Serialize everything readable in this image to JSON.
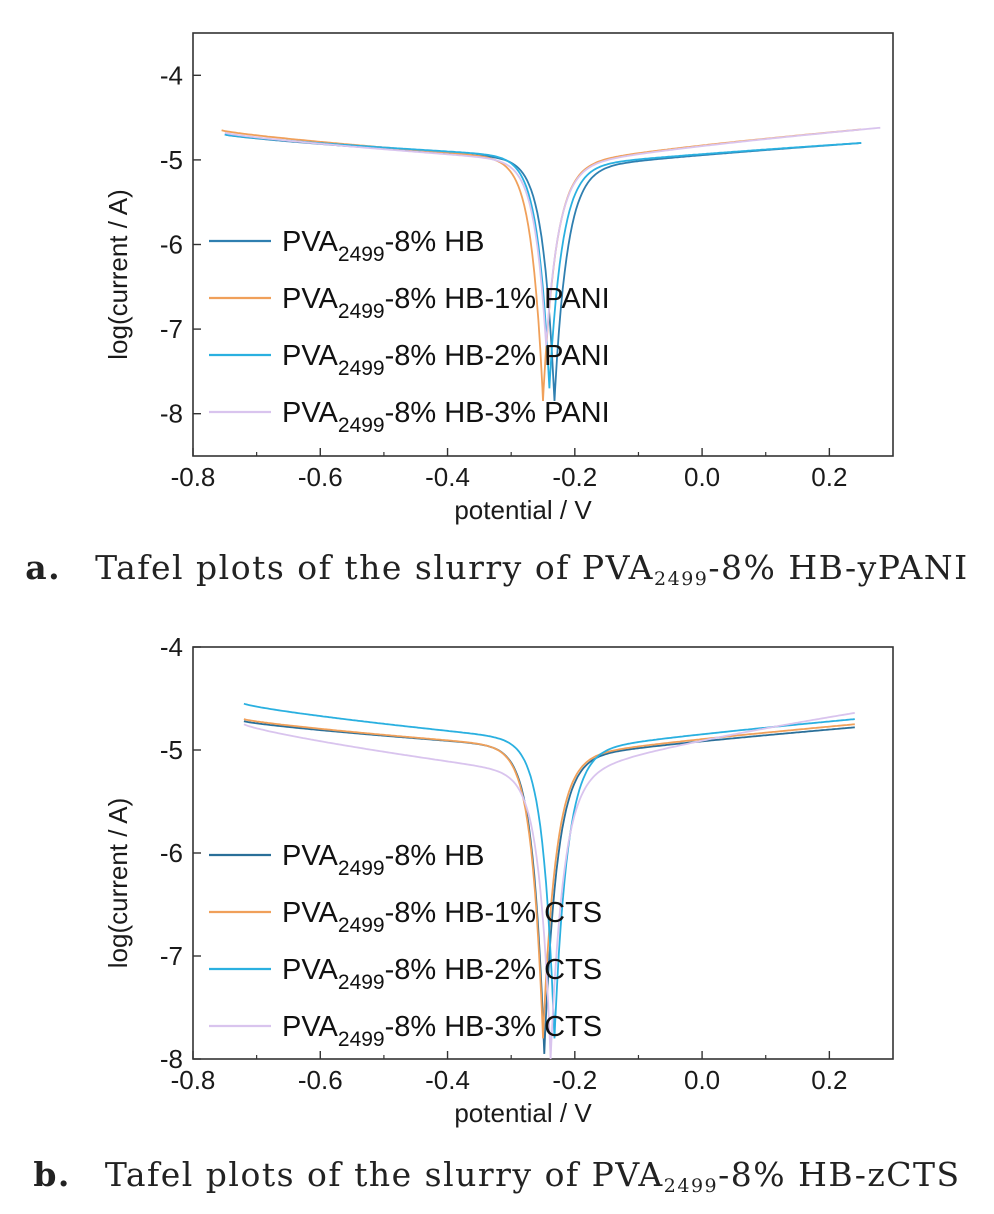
{
  "chart_data": [
    {
      "type": "line",
      "panel_label": "a.",
      "caption_text": "Tafel plots of the slurry of PVA",
      "caption_sub": "2499",
      "caption_rest": "-8% HB-yPANI",
      "xlabel": "potential / V",
      "ylabel": "log(current / A)",
      "xlim": [
        -0.8,
        0.3
      ],
      "ylim": [
        -8.5,
        -3.5
      ],
      "xticks": [
        -0.8,
        -0.6,
        -0.4,
        -0.2,
        0.0,
        0.2
      ],
      "xtick_labels": [
        "-0.8",
        "-0.6",
        "-0.4",
        "-0.2",
        "0.0",
        "0.2"
      ],
      "yticks": [
        -4,
        -5,
        -6,
        -7,
        -8
      ],
      "ytick_labels": [
        "-4",
        "-5",
        "-6",
        "-7",
        "-8"
      ],
      "legend_position": "center-left",
      "series": [
        {
          "name_main": "PVA",
          "name_sub": "2499",
          "name_rest": "-8% HB",
          "color": "#2f7fb0",
          "x_start": -0.75,
          "ecorr": -0.232,
          "x_end": 0.25,
          "y_start": -4.7,
          "y_mid": -5.0,
          "y_end": -4.8,
          "y_min": -7.85
        },
        {
          "name_main": "PVA",
          "name_sub": "2499",
          "name_rest": "-8% HB-1% PANI",
          "color": "#f0a05a",
          "x_start": -0.755,
          "ecorr": -0.25,
          "x_end": 0.25,
          "y_start": -4.65,
          "y_mid": -5.0,
          "y_end": -4.64,
          "y_min": -7.85
        },
        {
          "name_main": "PVA",
          "name_sub": "2499",
          "name_rest": "-8% HB-2% PANI",
          "color": "#2ab0e0",
          "x_start": -0.75,
          "ecorr": -0.24,
          "x_end": 0.25,
          "y_start": -4.7,
          "y_mid": -4.97,
          "y_end": -4.8,
          "y_min": -7.7
        },
        {
          "name_main": "PVA",
          "name_sub": "2499",
          "name_rest": "-8% HB-3% PANI",
          "color": "#d9c4ee",
          "x_start": -0.75,
          "ecorr": -0.245,
          "x_end": 0.28,
          "y_start": -4.68,
          "y_mid": -5.02,
          "y_end": -4.62,
          "y_min": -7.2
        }
      ]
    },
    {
      "type": "line",
      "panel_label": "b.",
      "caption_text": "Tafel plots of the slurry of PVA",
      "caption_sub": "2499",
      "caption_rest": "-8% HB-zCTS",
      "xlabel": "potential / V",
      "ylabel": "log(current / A)",
      "xlim": [
        -0.8,
        0.3
      ],
      "ylim": [
        -8,
        -4
      ],
      "xticks": [
        -0.8,
        -0.6,
        -0.4,
        -0.2,
        0.0,
        0.2
      ],
      "xtick_labels": [
        "-0.8",
        "-0.6",
        "-0.4",
        "-0.2",
        "0.0",
        "0.2"
      ],
      "yticks": [
        -4,
        -5,
        -6,
        -7,
        -8
      ],
      "ytick_labels": [
        "-4",
        "-5",
        "-6",
        "-7",
        "-8"
      ],
      "legend_position": "center-left",
      "series": [
        {
          "name_main": "PVA",
          "name_sub": "2499",
          "name_rest": "-8% HB",
          "color": "#2a6f99",
          "x_start": -0.72,
          "ecorr": -0.248,
          "x_end": 0.24,
          "y_start": -4.72,
          "y_mid": -4.98,
          "y_end": -4.78,
          "y_min": -7.95
        },
        {
          "name_main": "PVA",
          "name_sub": "2499",
          "name_rest": "-8% HB-1% CTS",
          "color": "#f0a05a",
          "x_start": -0.72,
          "ecorr": -0.25,
          "x_end": 0.24,
          "y_start": -4.7,
          "y_mid": -4.98,
          "y_end": -4.75,
          "y_min": -7.8
        },
        {
          "name_main": "PVA",
          "name_sub": "2499",
          "name_rest": "-8% HB-2% CTS",
          "color": "#2ab0e0",
          "x_start": -0.72,
          "ecorr": -0.232,
          "x_end": 0.24,
          "y_start": -4.55,
          "y_mid": -4.92,
          "y_end": -4.7,
          "y_min": -7.8
        },
        {
          "name_main": "PVA",
          "name_sub": "2499",
          "name_rest": "-8% HB-3% CTS",
          "color": "#d9c4ee",
          "x_start": -0.72,
          "ecorr": -0.238,
          "x_end": 0.24,
          "y_start": -4.75,
          "y_mid": -5.25,
          "y_end": -4.64,
          "y_min": -8.0
        }
      ]
    }
  ]
}
